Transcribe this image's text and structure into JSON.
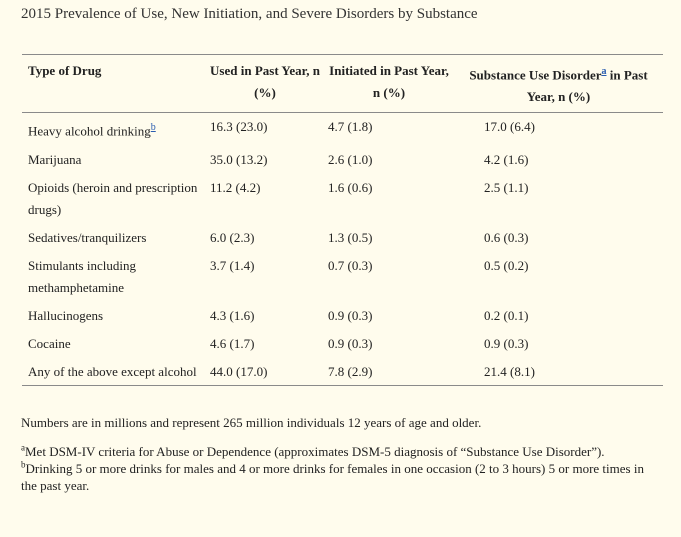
{
  "title": "2015 Prevalence of Use, New Initiation, and Severe Disorders by Substance",
  "columns": [
    "Type of Drug",
    "Used in Past Year, n (%)",
    "Initiated in Past Year, n (%)",
    "Substance Use Disorder",
    "in Past Year, n (%)"
  ],
  "footnote_marks": {
    "a": "a",
    "b": "b"
  },
  "rows": [
    {
      "drug": "Heavy alcohol drinking",
      "used": "16.3 (23.0)",
      "initiated": "4.7 (1.8)",
      "disorder": "17.0 (6.4)"
    },
    {
      "drug": "Marijuana",
      "used": "35.0 (13.2)",
      "initiated": "2.6 (1.0)",
      "disorder": "4.2 (1.6)"
    },
    {
      "drug": "Opioids (heroin and prescription drugs)",
      "used": "11.2 (4.2)",
      "initiated": "1.6 (0.6)",
      "disorder": "2.5 (1.1)"
    },
    {
      "drug": "Sedatives/tranquilizers",
      "used": "6.0 (2.3)",
      "initiated": "1.3 (0.5)",
      "disorder": "0.6 (0.3)"
    },
    {
      "drug": "Stimulants including methamphetamine",
      "used": "3.7 (1.4)",
      "initiated": "0.7 (0.3)",
      "disorder": "0.5 (0.2)"
    },
    {
      "drug": "Hallucinogens",
      "used": "4.3 (1.6)",
      "initiated": "0.9 (0.3)",
      "disorder": "0.2 (0.1)"
    },
    {
      "drug": "Cocaine",
      "used": "4.6 (1.7)",
      "initiated": "0.9 (0.3)",
      "disorder": "0.9 (0.3)"
    },
    {
      "drug": "Any of the above except alcohol",
      "used": "44.0 (17.0)",
      "initiated": "7.8 (2.9)",
      "disorder": "21.4 (8.1)"
    }
  ],
  "notes": {
    "summary": "Numbers are in millions and represent 265 million individuals 12 years of age and older.",
    "a": "Met DSM-IV criteria for Abuse or Dependence (approximates DSM-5 diagnosis of “Substance Use Disorder”).",
    "b": "Drinking 5 or more drinks for males and 4 or more drinks for females in one occasion (2 to 3 hours) 5 or more times in the past year."
  }
}
